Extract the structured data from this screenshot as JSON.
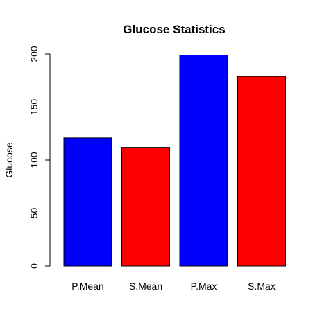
{
  "chart_data": {
    "type": "bar",
    "title": "Glucose Statistics",
    "xlabel": "",
    "ylabel": "Glucose",
    "categories": [
      "P.Mean",
      "S.Mean",
      "P.Max",
      "S.Max"
    ],
    "values": [
      121,
      112,
      199,
      179
    ],
    "colors": [
      "#0000ff",
      "#ff0000",
      "#0000ff",
      "#ff0000"
    ],
    "ylim": [
      0,
      200
    ],
    "yticks": [
      0,
      50,
      100,
      150,
      200
    ],
    "grid": false,
    "legend": "none"
  }
}
